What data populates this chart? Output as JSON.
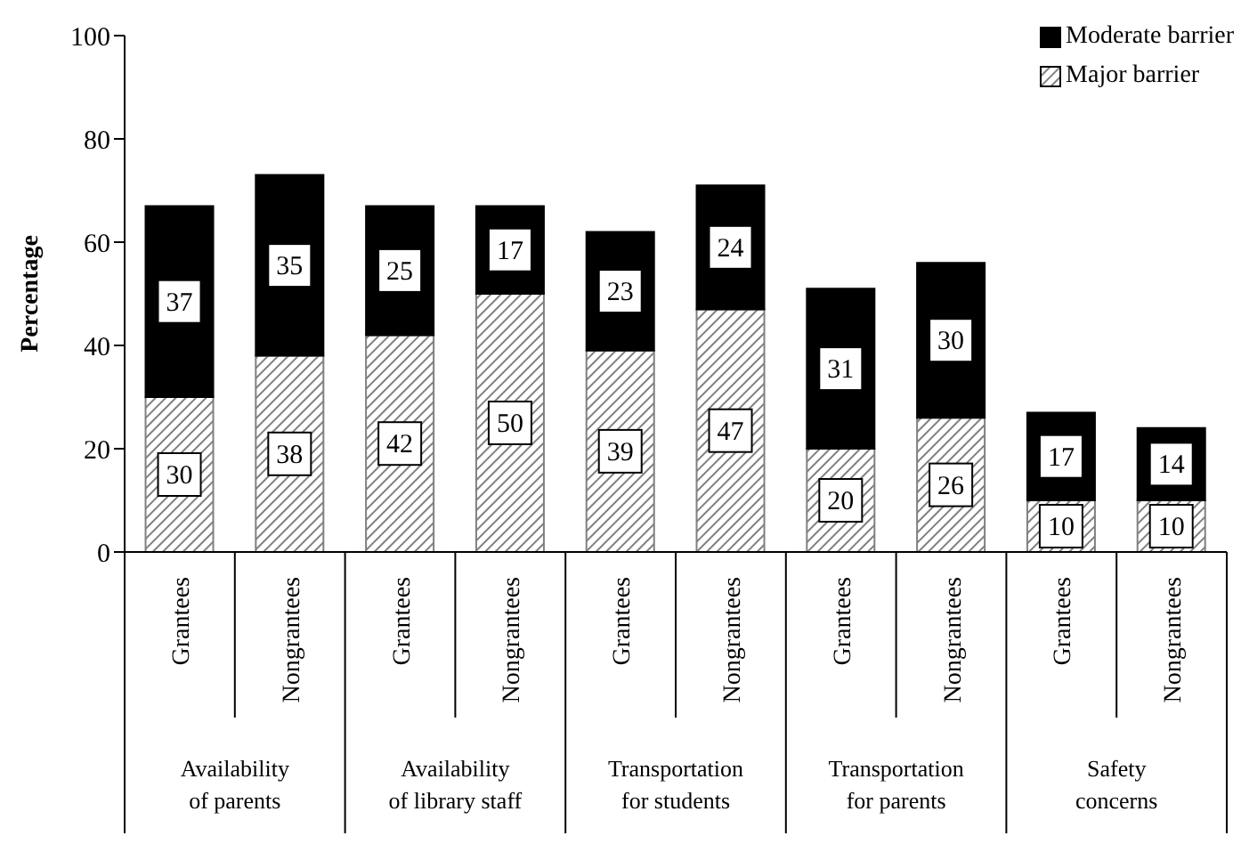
{
  "chart_data": {
    "type": "bar",
    "stacked": true,
    "ylabel": "Percentage",
    "categories": [
      "Grantees",
      "Nongrantees",
      "Grantees",
      "Nongrantees",
      "Grantees",
      "Nongrantees",
      "Grantees",
      "Nongrantees",
      "Grantees",
      "Nongrantees"
    ],
    "annotations": [
      "Availability of parents",
      "Availability of library staff",
      "Transportation for students",
      "Transportation for parents",
      "Safety concerns"
    ],
    "series": [
      {
        "name": "Major barrier",
        "color": "#808080",
        "values": [
          30,
          38,
          42,
          50,
          39,
          47,
          20,
          26,
          10,
          10
        ]
      },
      {
        "name": "Moderate barrier",
        "color": "#000000",
        "values": [
          37,
          35,
          25,
          17,
          23,
          24,
          31,
          30,
          17,
          14
        ]
      }
    ],
    "ylim": [
      0,
      100
    ],
    "yticks": [
      0,
      20,
      40,
      60,
      80,
      100
    ],
    "legend": "top right",
    "data_labels": true
  }
}
